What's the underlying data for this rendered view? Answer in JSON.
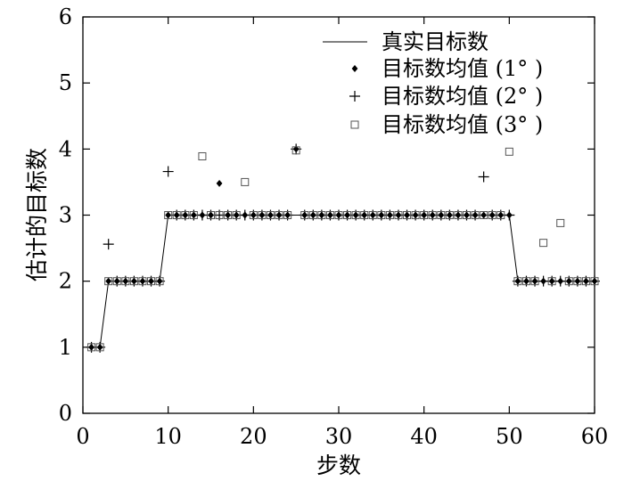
{
  "chart_data": {
    "type": "scatter",
    "xlabel": "步数",
    "ylabel": "估计的目标数",
    "xlim": [
      0,
      60
    ],
    "ylim": [
      0,
      6
    ],
    "xticks": [
      0,
      10,
      20,
      30,
      40,
      50,
      60
    ],
    "yticks": [
      0,
      1,
      2,
      3,
      4,
      5,
      6
    ],
    "grid": false,
    "legend_position": "top-right",
    "series": [
      {
        "name": "真实目标数",
        "kind": "line",
        "color": "#000000",
        "x": [
          1,
          2,
          3,
          9,
          10,
          50,
          51,
          60
        ],
        "y": [
          1,
          1,
          2,
          2,
          3,
          3,
          2,
          2
        ]
      },
      {
        "name": "目标数均值 (1° )",
        "kind": "diamond",
        "color": "#000000",
        "x": [
          1,
          2,
          3,
          4,
          5,
          6,
          7,
          8,
          9,
          10,
          11,
          12,
          13,
          14,
          15,
          16,
          17,
          18,
          19,
          20,
          21,
          22,
          23,
          24,
          25,
          26,
          27,
          28,
          29,
          30,
          31,
          32,
          33,
          34,
          35,
          36,
          37,
          38,
          39,
          40,
          41,
          42,
          43,
          44,
          45,
          46,
          47,
          48,
          49,
          50,
          51,
          52,
          53,
          54,
          55,
          56,
          57,
          58,
          59,
          60
        ],
        "y": [
          1,
          1,
          2,
          2,
          2,
          2,
          2,
          2,
          2,
          3,
          3,
          3,
          3,
          3,
          3,
          3.48,
          3,
          3,
          3,
          3,
          3,
          3,
          3,
          3,
          4,
          3,
          3,
          3,
          3,
          3,
          3,
          3,
          3,
          3,
          3,
          3,
          3,
          3,
          3,
          3,
          3,
          3,
          3,
          3,
          3,
          3,
          3,
          3,
          3,
          3,
          2,
          2,
          2,
          2,
          2,
          2,
          2,
          2,
          2,
          2
        ]
      },
      {
        "name": "目标数均值 (2° )",
        "kind": "plus",
        "color": "#000000",
        "x": [
          1,
          2,
          3,
          4,
          5,
          6,
          7,
          8,
          9,
          10,
          11,
          12,
          13,
          14,
          15,
          16,
          17,
          18,
          19,
          20,
          21,
          22,
          23,
          24,
          25,
          26,
          27,
          28,
          29,
          30,
          31,
          32,
          33,
          34,
          35,
          36,
          37,
          38,
          39,
          40,
          41,
          42,
          43,
          44,
          45,
          46,
          47,
          48,
          49,
          50,
          51,
          52,
          53,
          54,
          55,
          56,
          57,
          58,
          59,
          60
        ],
        "y": [
          1,
          1,
          2.56,
          2,
          2,
          2,
          2,
          2,
          2,
          3.66,
          3,
          3,
          3,
          3,
          3,
          3,
          3,
          3,
          3,
          3,
          3,
          3,
          3,
          3,
          4,
          3,
          3,
          3,
          3,
          3,
          3,
          3,
          3,
          3,
          3,
          3,
          3,
          3,
          3,
          3,
          3,
          3,
          3,
          3,
          3,
          3,
          3.58,
          3,
          3,
          3,
          2,
          2,
          2,
          2,
          2,
          2,
          2,
          2,
          2,
          2
        ]
      },
      {
        "name": "目标数均值 (3° )",
        "kind": "square",
        "color": "#555555",
        "x": [
          1,
          2,
          3,
          4,
          5,
          6,
          7,
          8,
          9,
          10,
          11,
          12,
          13,
          14,
          15,
          16,
          17,
          18,
          19,
          20,
          21,
          22,
          23,
          24,
          25,
          26,
          27,
          28,
          29,
          30,
          31,
          32,
          33,
          34,
          35,
          36,
          37,
          38,
          39,
          40,
          41,
          42,
          43,
          44,
          45,
          46,
          47,
          48,
          49,
          50,
          51,
          52,
          53,
          54,
          55,
          56,
          57,
          58,
          59,
          60
        ],
        "y": [
          1,
          1,
          2,
          2,
          2,
          2,
          2,
          2,
          2,
          3,
          3,
          3,
          3,
          3.89,
          3,
          3,
          3,
          3,
          3.5,
          3,
          3,
          3,
          3,
          3,
          3.98,
          3,
          3,
          3,
          3,
          3,
          3,
          3,
          3,
          3,
          3,
          3,
          3,
          3,
          3,
          3,
          3,
          3,
          3,
          3,
          3,
          3,
          3,
          3,
          3,
          3.96,
          2,
          2,
          2,
          2.58,
          2,
          2.88,
          2,
          2,
          2,
          2
        ]
      }
    ]
  }
}
